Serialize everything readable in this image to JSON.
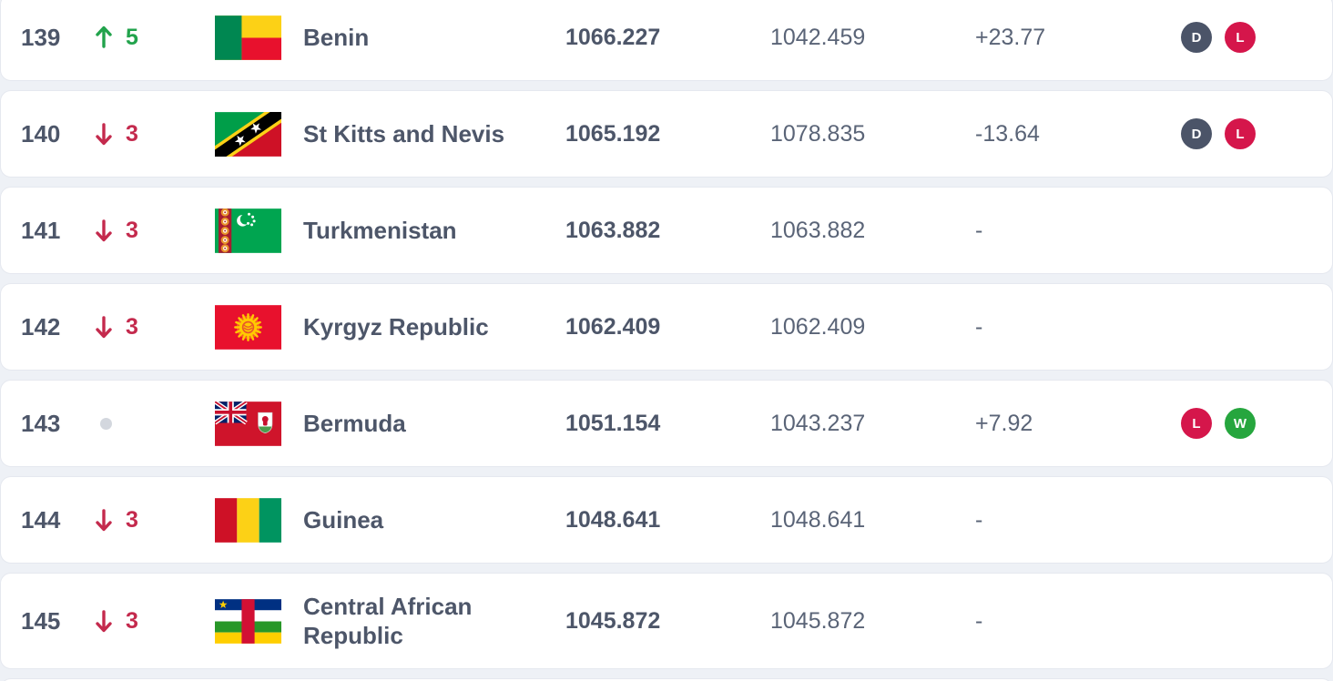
{
  "colors": {
    "up_green": "#22a34c",
    "down_red": "#c42a4d",
    "badge_draw": "#4b5468",
    "badge_loss": "#d5164b",
    "badge_win": "#26a63e",
    "text_primary": "#4d5669",
    "text_secondary": "#5a6477",
    "no_change_dot": "#d3d7de",
    "page_bg": "#eef1f6",
    "row_bg": "#ffffff"
  },
  "table": {
    "rows": [
      {
        "rank": "139",
        "movement": {
          "direction": "up",
          "value": "5",
          "icon": "up-arrow-icon"
        },
        "country": "Benin",
        "flag": "benin-flag",
        "points": "1066.227",
        "previous_points": "1042.459",
        "change": "+23.77",
        "form": [
          {
            "letter": "D",
            "result": "draw"
          },
          {
            "letter": "L",
            "result": "loss"
          }
        ]
      },
      {
        "rank": "140",
        "movement": {
          "direction": "down",
          "value": "3",
          "icon": "down-arrow-icon"
        },
        "country": "St Kitts and Nevis",
        "flag": "st-kitts-and-nevis-flag",
        "points": "1065.192",
        "previous_points": "1078.835",
        "change": "-13.64",
        "form": [
          {
            "letter": "D",
            "result": "draw"
          },
          {
            "letter": "L",
            "result": "loss"
          }
        ]
      },
      {
        "rank": "141",
        "movement": {
          "direction": "down",
          "value": "3",
          "icon": "down-arrow-icon"
        },
        "country": "Turkmenistan",
        "flag": "turkmenistan-flag",
        "points": "1063.882",
        "previous_points": "1063.882",
        "change": "-",
        "form": []
      },
      {
        "rank": "142",
        "movement": {
          "direction": "down",
          "value": "3",
          "icon": "down-arrow-icon"
        },
        "country": "Kyrgyz Republic",
        "flag": "kyrgyz-republic-flag",
        "points": "1062.409",
        "previous_points": "1062.409",
        "change": "-",
        "form": []
      },
      {
        "rank": "143",
        "movement": {
          "direction": "none",
          "value": "",
          "icon": "no-change-dot-icon"
        },
        "country": "Bermuda",
        "flag": "bermuda-flag",
        "points": "1051.154",
        "previous_points": "1043.237",
        "change": "+7.92",
        "form": [
          {
            "letter": "L",
            "result": "loss"
          },
          {
            "letter": "W",
            "result": "win"
          }
        ]
      },
      {
        "rank": "144",
        "movement": {
          "direction": "down",
          "value": "3",
          "icon": "down-arrow-icon"
        },
        "country": "Guinea",
        "flag": "guinea-flag",
        "points": "1048.641",
        "previous_points": "1048.641",
        "change": "-",
        "form": []
      },
      {
        "rank": "145",
        "movement": {
          "direction": "down",
          "value": "3",
          "icon": "down-arrow-icon"
        },
        "country": "Central African Republic",
        "flag": "central-african-republic-flag",
        "points": "1045.872",
        "previous_points": "1045.872",
        "change": "-",
        "form": []
      }
    ]
  }
}
